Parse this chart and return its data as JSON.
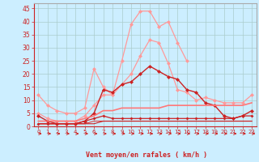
{
  "xlabel": "Vent moyen/en rafales ( km/h )",
  "background_color": "#cceeff",
  "grid_color": "#aacccc",
  "x": [
    0,
    1,
    2,
    3,
    4,
    5,
    6,
    7,
    8,
    9,
    10,
    11,
    12,
    13,
    14,
    15,
    16,
    17,
    18,
    19,
    20,
    21,
    22,
    23
  ],
  "series": [
    {
      "color": "#ff9999",
      "linewidth": 0.9,
      "markersize": 2.5,
      "data": [
        12,
        8,
        6,
        5,
        5,
        7,
        22,
        15,
        12,
        25,
        39,
        44,
        44,
        38,
        40,
        32,
        25,
        null,
        null,
        null,
        null,
        null,
        null,
        null
      ]
    },
    {
      "color": "#ff9999",
      "linewidth": 0.9,
      "markersize": 2.5,
      "data": [
        5,
        3,
        2,
        2,
        2,
        4,
        8,
        12,
        12,
        16,
        20,
        27,
        33,
        32,
        24,
        14,
        13,
        10,
        11,
        10,
        9,
        9,
        9,
        12
      ]
    },
    {
      "color": "#cc2222",
      "linewidth": 1.0,
      "markersize": 2.5,
      "data": [
        4,
        2,
        1,
        1,
        1,
        2,
        5,
        14,
        13,
        16,
        17,
        20,
        23,
        21,
        19,
        18,
        14,
        13,
        9,
        8,
        4,
        3,
        4,
        6
      ]
    },
    {
      "color": "#cc2222",
      "linewidth": 0.9,
      "markersize": 2.0,
      "data": [
        1,
        1,
        1,
        1,
        1,
        2,
        3,
        4,
        3,
        3,
        3,
        3,
        3,
        3,
        3,
        3,
        3,
        3,
        3,
        3,
        3,
        3,
        4,
        4
      ]
    },
    {
      "color": "#ff7777",
      "linewidth": 1.2,
      "markersize": 0,
      "data": [
        2,
        2,
        2,
        2,
        2,
        3,
        4,
        6,
        6,
        7,
        7,
        7,
        7,
        7,
        8,
        8,
        8,
        8,
        8,
        8,
        8,
        8,
        8,
        9
      ]
    },
    {
      "color": "#dd4444",
      "linewidth": 0.8,
      "markersize": 0,
      "data": [
        1,
        1,
        1,
        1,
        1,
        1,
        2,
        2,
        2,
        2,
        2,
        2,
        2,
        2,
        2,
        2,
        2,
        2,
        2,
        2,
        2,
        2,
        2,
        2
      ]
    },
    {
      "color": "#cc2222",
      "linewidth": 0.8,
      "markersize": 0,
      "data": [
        1,
        1,
        1,
        1,
        1,
        1,
        1,
        2,
        2,
        2,
        2,
        2,
        2,
        2,
        2,
        2,
        2,
        2,
        2,
        2,
        2,
        2,
        2,
        2
      ]
    }
  ],
  "ylim": [
    0,
    47
  ],
  "yticks": [
    0,
    5,
    10,
    15,
    20,
    25,
    30,
    35,
    40,
    45
  ]
}
